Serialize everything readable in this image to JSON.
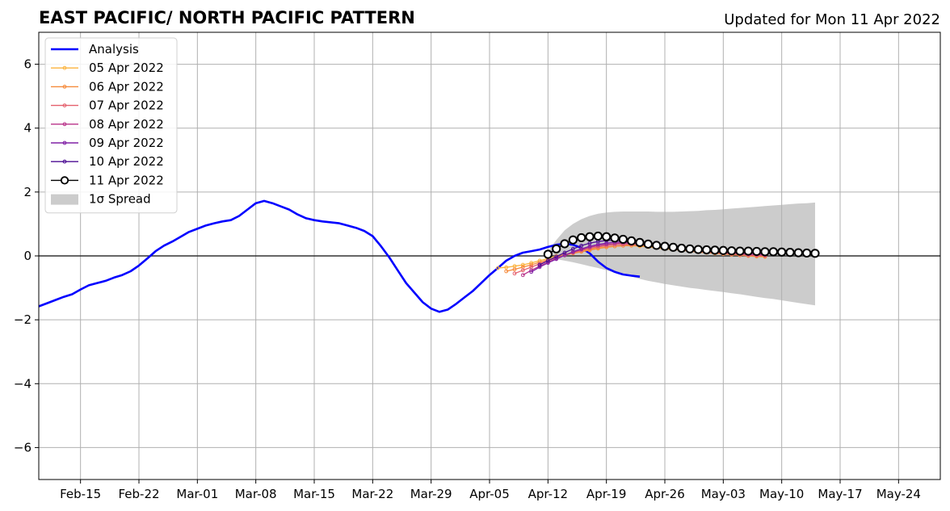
{
  "chart_data": {
    "type": "line",
    "title": "EAST PACIFIC/ NORTH PACIFIC PATTERN",
    "subtitle": "Updated for Mon 11 Apr 2022",
    "xlabel": "",
    "ylabel": "",
    "x_range": [
      "2022-02-10",
      "2022-05-29"
    ],
    "ylim": [
      -7,
      7
    ],
    "yticks": [
      -6,
      -4,
      -2,
      0,
      2,
      4,
      6
    ],
    "xticks": [
      {
        "date": "2022-02-15",
        "label": "Feb-15"
      },
      {
        "date": "2022-02-22",
        "label": "Feb-22"
      },
      {
        "date": "2022-03-01",
        "label": "Mar-01"
      },
      {
        "date": "2022-03-08",
        "label": "Mar-08"
      },
      {
        "date": "2022-03-15",
        "label": "Mar-15"
      },
      {
        "date": "2022-03-22",
        "label": "Mar-22"
      },
      {
        "date": "2022-03-29",
        "label": "Mar-29"
      },
      {
        "date": "2022-04-05",
        "label": "Apr-05"
      },
      {
        "date": "2022-04-12",
        "label": "Apr-12"
      },
      {
        "date": "2022-04-19",
        "label": "Apr-19"
      },
      {
        "date": "2022-04-26",
        "label": "Apr-26"
      },
      {
        "date": "2022-05-03",
        "label": "May-03"
      },
      {
        "date": "2022-05-10",
        "label": "May-10"
      },
      {
        "date": "2022-05-17",
        "label": "May-17"
      },
      {
        "date": "2022-05-24",
        "label": "May-24"
      }
    ],
    "grid": true,
    "legend": "top-left",
    "analysis": {
      "name": "Analysis",
      "color": "#0000ff",
      "start_date": "2022-02-10",
      "values": [
        -1.58,
        -1.48,
        -1.38,
        -1.28,
        -1.2,
        -1.05,
        -0.92,
        -0.85,
        -0.78,
        -0.68,
        -0.6,
        -0.48,
        -0.3,
        -0.08,
        0.15,
        0.32,
        0.45,
        0.6,
        0.75,
        0.85,
        0.95,
        1.02,
        1.08,
        1.12,
        1.25,
        1.45,
        1.65,
        1.72,
        1.65,
        1.55,
        1.45,
        1.3,
        1.18,
        1.12,
        1.08,
        1.05,
        1.02,
        0.95,
        0.88,
        0.78,
        0.62,
        0.3,
        -0.05,
        -0.45,
        -0.85,
        -1.15,
        -1.45,
        -1.65,
        -1.75,
        -1.68,
        -1.5,
        -1.3,
        -1.1,
        -0.85,
        -0.6,
        -0.38,
        -0.15,
        0.0,
        0.1,
        0.15,
        0.2,
        0.28,
        0.35,
        0.38,
        0.35,
        0.25,
        0.08,
        -0.18,
        -0.38,
        -0.5,
        -0.58,
        -0.62,
        -0.65
      ]
    },
    "forecasts": [
      {
        "name": "05 Apr 2022",
        "color": "#fbb33d",
        "start_date": "2022-04-06",
        "values": [
          -0.38,
          -0.36,
          -0.32,
          -0.28,
          -0.22,
          -0.15,
          -0.08,
          0.0,
          0.05,
          0.1,
          0.15,
          0.2,
          0.25,
          0.28,
          0.3,
          0.32,
          0.32,
          0.3,
          0.28,
          0.25,
          0.22,
          0.2,
          0.18,
          0.15,
          0.12,
          0.1,
          0.08,
          0.06,
          0.04,
          0.02,
          0.0,
          -0.02,
          -0.03
        ]
      },
      {
        "name": "06 Apr 2022",
        "color": "#f68b3c",
        "start_date": "2022-04-07",
        "values": [
          -0.48,
          -0.42,
          -0.35,
          -0.28,
          -0.2,
          -0.12,
          -0.05,
          0.02,
          0.08,
          0.13,
          0.18,
          0.23,
          0.27,
          0.3,
          0.32,
          0.33,
          0.32,
          0.3,
          0.27,
          0.24,
          0.21,
          0.18,
          0.15,
          0.12,
          0.1,
          0.08,
          0.06,
          0.04,
          0.02,
          0.0,
          -0.01,
          -0.02
        ]
      },
      {
        "name": "07 Apr 2022",
        "color": "#e4606d",
        "start_date": "2022-04-08",
        "values": [
          -0.55,
          -0.45,
          -0.35,
          -0.25,
          -0.15,
          -0.06,
          0.02,
          0.1,
          0.17,
          0.23,
          0.28,
          0.32,
          0.35,
          0.36,
          0.36,
          0.34,
          0.32,
          0.29,
          0.26,
          0.23,
          0.2,
          0.17,
          0.14,
          0.12,
          0.1,
          0.08,
          0.06,
          0.04,
          0.02,
          0.01,
          0.0
        ]
      },
      {
        "name": "08 Apr 2022",
        "color": "#b83289",
        "start_date": "2022-04-09",
        "values": [
          -0.6,
          -0.45,
          -0.32,
          -0.2,
          -0.08,
          0.02,
          0.12,
          0.2,
          0.27,
          0.32,
          0.36,
          0.39,
          0.4,
          0.4,
          0.38,
          0.35,
          0.32,
          0.29,
          0.26,
          0.23,
          0.2,
          0.17,
          0.15,
          0.13,
          0.11,
          0.09,
          0.07,
          0.05,
          0.04,
          0.03
        ]
      },
      {
        "name": "09 Apr 2022",
        "color": "#8122a6",
        "start_date": "2022-04-10",
        "values": [
          -0.5,
          -0.35,
          -0.22,
          -0.1,
          0.02,
          0.13,
          0.22,
          0.3,
          0.36,
          0.4,
          0.43,
          0.44,
          0.43,
          0.41,
          0.38,
          0.35,
          0.32,
          0.29,
          0.26,
          0.23,
          0.2,
          0.18,
          0.16,
          0.14,
          0.12,
          0.1,
          0.09,
          0.08,
          0.07
        ]
      },
      {
        "name": "10 Apr 2022",
        "color": "#4b0c93",
        "start_date": "2022-04-11",
        "values": [
          -0.28,
          -0.15,
          -0.02,
          0.1,
          0.22,
          0.32,
          0.4,
          0.45,
          0.48,
          0.49,
          0.48,
          0.46,
          0.43,
          0.4,
          0.37,
          0.34,
          0.31,
          0.28,
          0.25,
          0.22,
          0.2,
          0.18,
          0.16,
          0.14,
          0.13,
          0.12,
          0.11,
          0.1
        ]
      },
      {
        "name": "11 Apr 2022",
        "color": "#000000",
        "marker": "open-circle",
        "start_date": "2022-04-12",
        "values": [
          0.05,
          0.22,
          0.38,
          0.5,
          0.57,
          0.6,
          0.62,
          0.6,
          0.56,
          0.52,
          0.47,
          0.42,
          0.37,
          0.33,
          0.3,
          0.27,
          0.24,
          0.22,
          0.2,
          0.19,
          0.18,
          0.17,
          0.16,
          0.15,
          0.15,
          0.14,
          0.13,
          0.13,
          0.12,
          0.11,
          0.1,
          0.09,
          0.08
        ]
      }
    ],
    "spread": {
      "name": "1σ Spread",
      "color": "#cccccc",
      "start_date": "2022-04-12",
      "upper": [
        0.15,
        0.5,
        0.8,
        1.0,
        1.15,
        1.25,
        1.32,
        1.36,
        1.38,
        1.39,
        1.39,
        1.39,
        1.39,
        1.38,
        1.38,
        1.38,
        1.39,
        1.4,
        1.41,
        1.43,
        1.44,
        1.46,
        1.48,
        1.5,
        1.52,
        1.54,
        1.56,
        1.58,
        1.6,
        1.62,
        1.64,
        1.65,
        1.67
      ],
      "lower": [
        -0.05,
        -0.1,
        -0.15,
        -0.2,
        -0.26,
        -0.32,
        -0.38,
        -0.45,
        -0.52,
        -0.58,
        -0.65,
        -0.72,
        -0.78,
        -0.83,
        -0.88,
        -0.92,
        -0.96,
        -1.0,
        -1.03,
        -1.07,
        -1.1,
        -1.13,
        -1.17,
        -1.2,
        -1.24,
        -1.28,
        -1.32,
        -1.35,
        -1.39,
        -1.43,
        -1.47,
        -1.51,
        -1.55
      ]
    }
  }
}
